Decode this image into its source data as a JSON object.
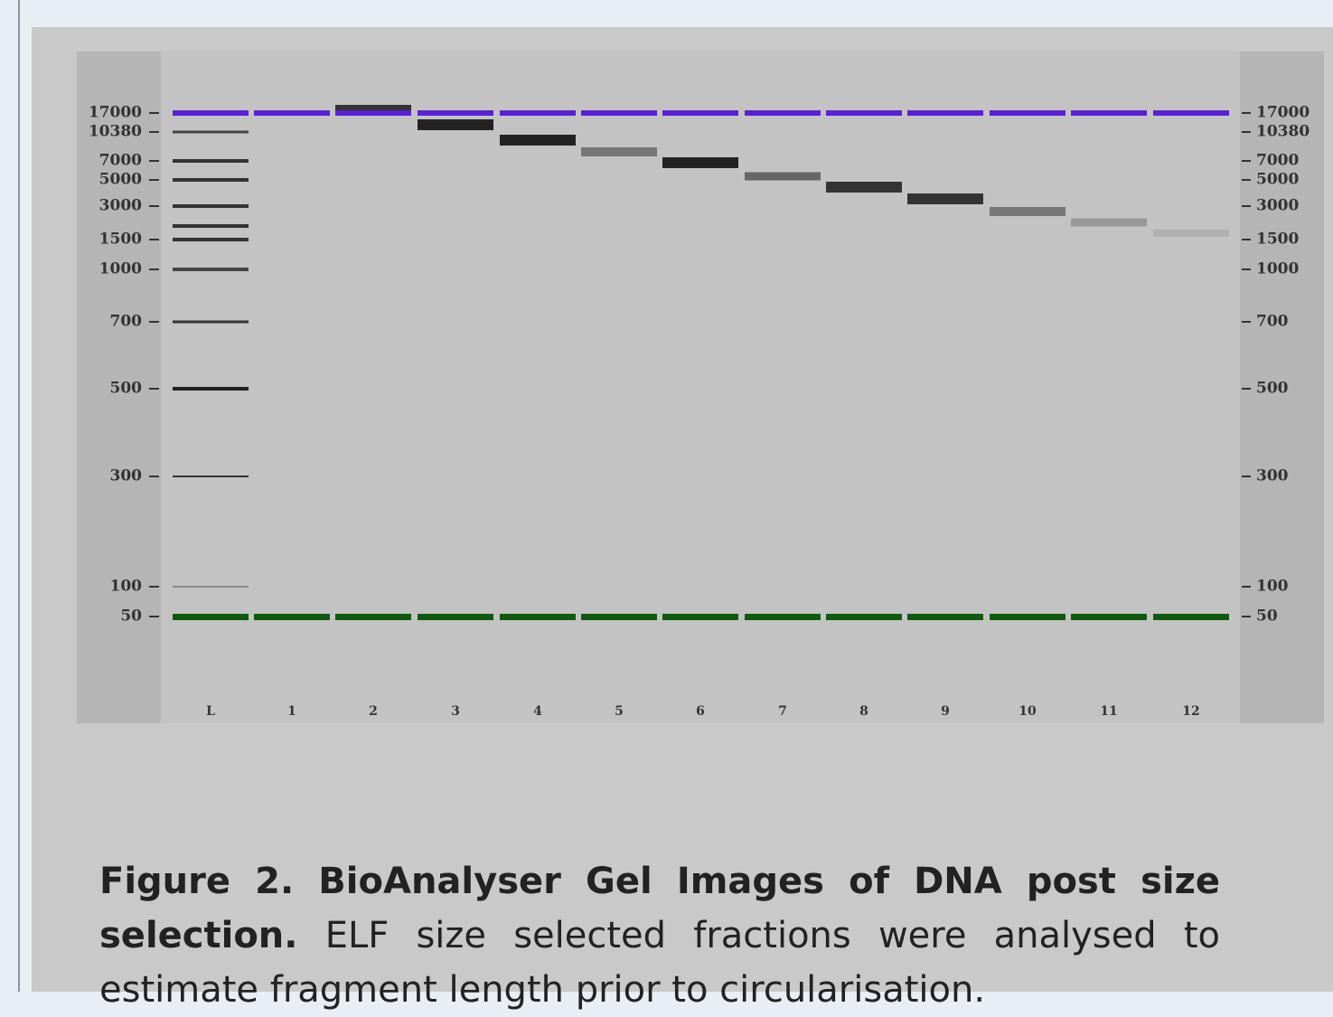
{
  "gel": {
    "size_labels": [
      "17000",
      "10380",
      "7000",
      "5000",
      "3000",
      "1500",
      "1000",
      "700",
      "500",
      "300",
      "100",
      "50"
    ],
    "lane_labels": [
      "L",
      "1",
      "2",
      "3",
      "4",
      "5",
      "6",
      "7",
      "8",
      "9",
      "10",
      "11",
      "12"
    ]
  },
  "caption": {
    "title": "Figure 2. BioAnalyser Gel Images of DNA post size selection.",
    "text": "ELF size selected fractions were analysed to estimate fragment length prior to circularisation."
  }
}
